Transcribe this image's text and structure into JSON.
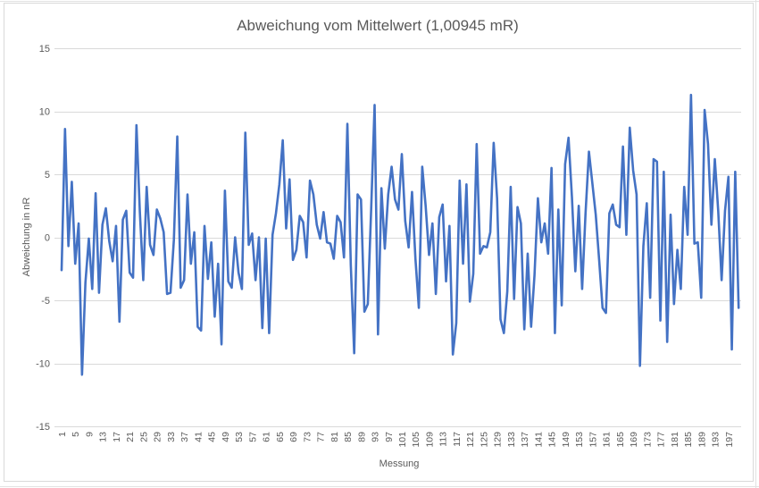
{
  "chart_data": {
    "type": "line",
    "title": "Abweichung vom Mittelwert (1,00945 mR)",
    "xlabel": "Messung",
    "ylabel": "Abweichung in nR",
    "ylim": [
      -15,
      15
    ],
    "yticks": [
      "15",
      "10",
      "5",
      "0",
      "-5",
      "-10",
      "-15"
    ],
    "ytick_values": [
      15,
      10,
      5,
      0,
      -5,
      -10,
      -15
    ],
    "x_start": 1,
    "x_end": 200,
    "x_tick_labels": [
      "1",
      "5",
      "9",
      "13",
      "17",
      "21",
      "25",
      "29",
      "33",
      "37",
      "41",
      "45",
      "49",
      "53",
      "57",
      "61",
      "65",
      "69",
      "73",
      "77",
      "81",
      "85",
      "89",
      "93",
      "97",
      "101",
      "105",
      "109",
      "113",
      "117",
      "121",
      "125",
      "129",
      "133",
      "137",
      "141",
      "145",
      "149",
      "153",
      "157",
      "161",
      "165",
      "169",
      "173",
      "177",
      "181",
      "185",
      "189",
      "193",
      "197"
    ],
    "grid": "horizontal",
    "line_color": "#4472c4",
    "series": [
      {
        "values": [
          -2.6,
          8.6,
          -0.7,
          4.4,
          -2.1,
          1.1,
          -10.9,
          -3.6,
          -0.1,
          -4.1,
          3.5,
          -4.4,
          1.0,
          2.3,
          -0.3,
          -1.9,
          0.9,
          -6.7,
          1.4,
          2.1,
          -2.8,
          -3.2,
          8.9,
          2.0,
          -3.4,
          4.0,
          -0.6,
          -1.4,
          2.2,
          1.5,
          0.4,
          -4.5,
          -4.4,
          -0.2,
          8.0,
          -4.0,
          -3.4,
          3.4,
          -2.1,
          0.4,
          -7.1,
          -7.4,
          0.9,
          -3.3,
          -0.4,
          -6.3,
          -2.1,
          -8.5,
          3.7,
          -3.5,
          -4.0,
          0.0,
          -2.8,
          -4.1,
          8.3,
          -0.6,
          0.3,
          -3.4,
          0.0,
          -7.2,
          -0.1,
          -7.6,
          0.2,
          1.9,
          4.2,
          7.7,
          0.7,
          4.6,
          -1.8,
          -1.0,
          1.7,
          1.2,
          -1.6,
          4.5,
          3.4,
          1.0,
          -0.1,
          2.0,
          -0.4,
          -0.5,
          -1.7,
          1.7,
          1.2,
          -1.6,
          9.0,
          -2.2,
          -9.2,
          3.4,
          3.0,
          -5.9,
          -5.3,
          2.3,
          10.5,
          -7.7,
          3.9,
          -0.9,
          3.4,
          5.6,
          3.0,
          2.2,
          6.6,
          1.3,
          -0.8,
          3.6,
          -1.7,
          -5.6,
          5.6,
          2.5,
          -1.4,
          1.1,
          -4.5,
          1.6,
          2.6,
          -3.5,
          0.9,
          -9.3,
          -6.8,
          4.5,
          -2.1,
          4.2,
          -5.1,
          -2.9,
          7.4,
          -1.3,
          -0.7,
          -0.8,
          0.4,
          7.5,
          3.1,
          -6.5,
          -7.6,
          -4.3,
          4.0,
          -4.9,
          2.4,
          1.1,
          -7.3,
          -1.3,
          -7.1,
          -3.0,
          3.1,
          -0.4,
          1.1,
          -1.3,
          5.5,
          -7.6,
          2.2,
          -5.4,
          5.8,
          7.9,
          3.2,
          -2.7,
          2.5,
          -4.1,
          1.9,
          6.8,
          4.3,
          1.8,
          -1.8,
          -5.6,
          -6.0,
          1.9,
          2.6,
          1.0,
          0.8,
          7.2,
          0.2,
          8.7,
          5.3,
          3.4,
          -10.2,
          -0.7,
          2.7,
          -4.8,
          6.2,
          6.0,
          -6.6,
          5.2,
          -8.3,
          1.8,
          -5.3,
          -1.0,
          -4.1,
          4.0,
          0.2,
          11.3,
          -0.5,
          -0.4,
          -4.8,
          10.1,
          7.4,
          1.0,
          6.2,
          2.1,
          -3.4,
          2.1,
          4.8,
          -8.9,
          5.2,
          -5.6
        ]
      }
    ]
  }
}
